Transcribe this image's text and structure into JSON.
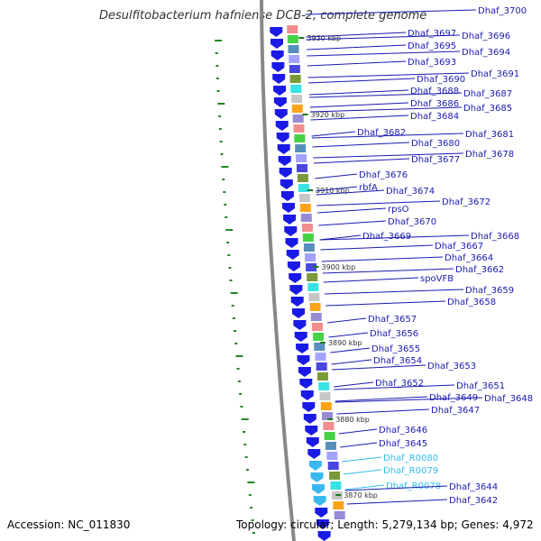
{
  "map": {
    "title": "Desulfitobacterium hafniense DCB-2, complete genome",
    "accession_label": "Accession: NC_011830",
    "summary_label": "Topology: circular; Length: 5,279,134 bp; Genes: 4,972",
    "kbp_ticks": [
      "3930 kbp",
      "3920 kbp",
      "3910 kbp",
      "3900 kbp",
      "3890 kbp",
      "3880 kbp",
      "3870 kbp"
    ],
    "gene_labels": [
      {
        "text": "Dhaf_3700",
        "kind": "cds"
      },
      {
        "text": "Dhaf_3697",
        "kind": "cds"
      },
      {
        "text": "Dhaf_3696",
        "kind": "cds"
      },
      {
        "text": "Dhaf_3695",
        "kind": "cds"
      },
      {
        "text": "Dhaf_3694",
        "kind": "cds"
      },
      {
        "text": "Dhaf_3693",
        "kind": "cds"
      },
      {
        "text": "Dhaf_3691",
        "kind": "cds"
      },
      {
        "text": "Dhaf_3690",
        "kind": "cds"
      },
      {
        "text": "Dhaf_3688",
        "kind": "cds"
      },
      {
        "text": "Dhaf_3687",
        "kind": "cds"
      },
      {
        "text": "Dhaf_3686",
        "kind": "cds"
      },
      {
        "text": "Dhaf_3685",
        "kind": "cds"
      },
      {
        "text": "Dhaf_3684",
        "kind": "cds"
      },
      {
        "text": "Dhaf_3682",
        "kind": "cds"
      },
      {
        "text": "Dhaf_3681",
        "kind": "cds"
      },
      {
        "text": "Dhaf_3680",
        "kind": "cds"
      },
      {
        "text": "Dhaf_3678",
        "kind": "cds"
      },
      {
        "text": "Dhaf_3677",
        "kind": "cds"
      },
      {
        "text": "Dhaf_3676",
        "kind": "cds"
      },
      {
        "text": "rbfA",
        "kind": "cds"
      },
      {
        "text": "Dhaf_3674",
        "kind": "cds"
      },
      {
        "text": "Dhaf_3672",
        "kind": "cds"
      },
      {
        "text": "rpsO",
        "kind": "cds"
      },
      {
        "text": "Dhaf_3670",
        "kind": "cds"
      },
      {
        "text": "Dhaf_3669",
        "kind": "cds"
      },
      {
        "text": "Dhaf_3668",
        "kind": "cds"
      },
      {
        "text": "Dhaf_3667",
        "kind": "cds"
      },
      {
        "text": "Dhaf_3664",
        "kind": "cds"
      },
      {
        "text": "Dhaf_3662",
        "kind": "cds"
      },
      {
        "text": "spoVFB",
        "kind": "cds"
      },
      {
        "text": "Dhaf_3659",
        "kind": "cds"
      },
      {
        "text": "Dhaf_3658",
        "kind": "cds"
      },
      {
        "text": "Dhaf_3657",
        "kind": "cds"
      },
      {
        "text": "Dhaf_3656",
        "kind": "cds"
      },
      {
        "text": "Dhaf_3655",
        "kind": "cds"
      },
      {
        "text": "Dhaf_3654",
        "kind": "cds"
      },
      {
        "text": "Dhaf_3653",
        "kind": "cds"
      },
      {
        "text": "Dhaf_3652",
        "kind": "cds"
      },
      {
        "text": "Dhaf_3651",
        "kind": "cds"
      },
      {
        "text": "Dhaf_3649",
        "kind": "cds"
      },
      {
        "text": "Dhaf_3648",
        "kind": "cds"
      },
      {
        "text": "Dhaf_3647",
        "kind": "cds"
      },
      {
        "text": "Dhaf_3646",
        "kind": "cds"
      },
      {
        "text": "Dhaf_3645",
        "kind": "cds"
      },
      {
        "text": "Dhaf_R0080",
        "kind": "rna"
      },
      {
        "text": "Dhaf_R0079",
        "kind": "rna"
      },
      {
        "text": "Dhaf_R0078",
        "kind": "rna"
      },
      {
        "text": "Dhaf_3644",
        "kind": "cds"
      },
      {
        "text": "Dhaf_3642",
        "kind": "cds"
      }
    ],
    "colors": {
      "cds_label": "#1a1ab0",
      "rna_label": "#33bbee",
      "backbone": "#888888",
      "gc_skew": "#228822",
      "cds_arrow": "#1a1ae6",
      "rna_arrow": "#3ab8f0"
    }
  }
}
